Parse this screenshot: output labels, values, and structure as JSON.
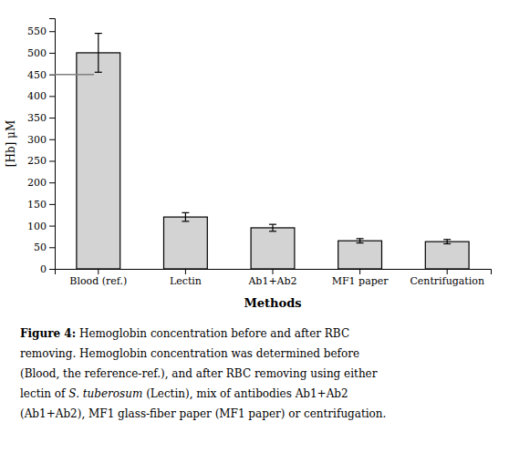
{
  "chart_data": {
    "type": "bar",
    "categories": [
      "Blood (ref.)",
      "Lectin",
      "Ab1+Ab2",
      "MF1 paper",
      "Centrifugation"
    ],
    "values": [
      500,
      120,
      95,
      65,
      63
    ],
    "errors": [
      45,
      10,
      8,
      5,
      5
    ],
    "color": "#d3d3d3",
    "xlabel": "Methods",
    "ylabel": "[Hb] μM",
    "ylim": [
      0,
      580
    ],
    "yticks": [
      0,
      50,
      100,
      150,
      200,
      250,
      300,
      350,
      400,
      450,
      500,
      550
    ],
    "hline": 450,
    "caption": [
      [
        "Figure 4:",
        " Hemoglobin concentration before and after RBC"
      ],
      [
        "removing. Hemoglobin concentration was determined before"
      ],
      [
        "(Blood, the reference-ref.), and after RBC removing using either"
      ],
      [
        "lectin of ",
        "S. tuberosum",
        " (Lectin), mix of antibodies Ab1+Ab2"
      ],
      [
        "(Ab1+Ab2), MF1 glass-fiber paper (MF1 paper) or centrifugation."
      ]
    ]
  }
}
